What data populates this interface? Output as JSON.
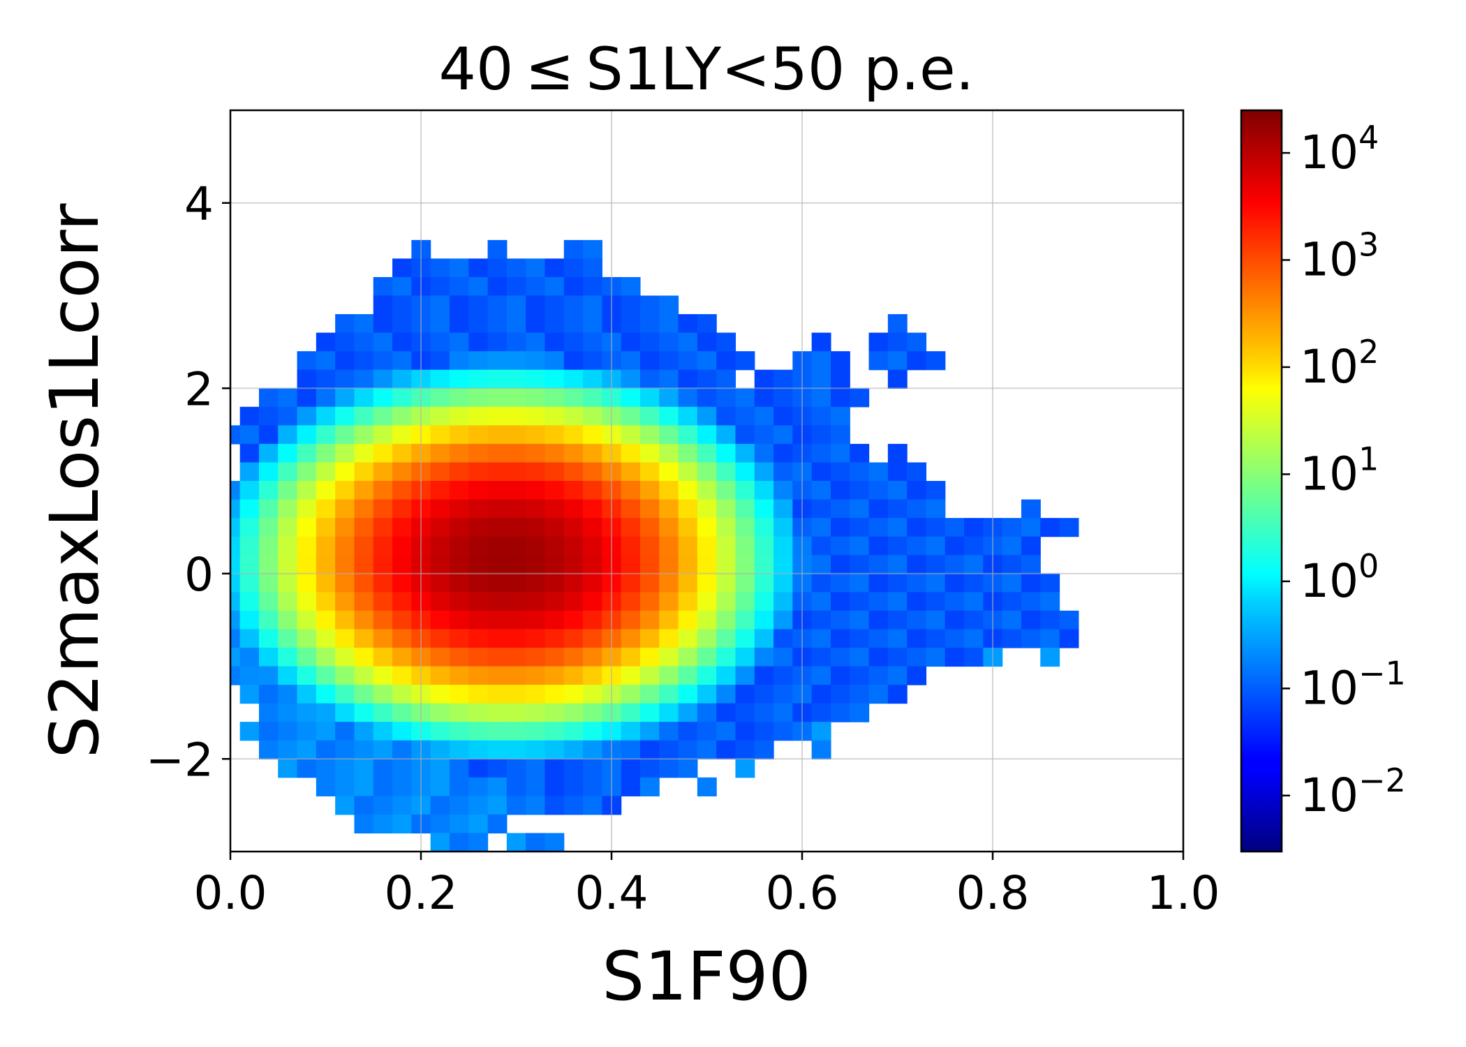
{
  "chart_data": {
    "type": "heatmap",
    "title": "40 ≤ S1LY<50 p.e.",
    "xlabel": "S1F90",
    "ylabel": "S2maxLos1Lcorr",
    "xlim": [
      0.0,
      1.0
    ],
    "ylim": [
      -3.0,
      5.0
    ],
    "x_ticks": [
      0.0,
      0.2,
      0.4,
      0.6,
      0.8,
      1.0
    ],
    "x_tick_labels": [
      "0.0",
      "0.2",
      "0.4",
      "0.6",
      "0.8",
      "1.0"
    ],
    "y_ticks": [
      -2,
      0,
      2,
      4
    ],
    "y_tick_labels": [
      "−2",
      "0",
      "2",
      "4"
    ],
    "grid": true,
    "colormap": "jet",
    "color_scale": "log",
    "color_range": [
      0.003,
      25000
    ],
    "colorbar_ticks": [
      -2,
      -1,
      0,
      1,
      2,
      3,
      4
    ],
    "colorbar_tick_labels": [
      {
        "base": "10",
        "exp": "−2"
      },
      {
        "base": "10",
        "exp": "−1"
      },
      {
        "base": "10",
        "exp": "0"
      },
      {
        "base": "10",
        "exp": "1"
      },
      {
        "base": "10",
        "exp": "2"
      },
      {
        "base": "10",
        "exp": "3"
      },
      {
        "base": "10",
        "exp": "4"
      }
    ],
    "bins": {
      "x_width": 0.02,
      "y_height": 0.2
    },
    "peak": {
      "x": 0.29,
      "y": 0.15,
      "log10_value": 4.2
    },
    "core_ellipse": {
      "x_sigma": 0.128,
      "y_sigma": 0.9
    },
    "rows": [
      {
        "y": 3.5,
        "segments": [
          [
            0.19,
            0.21
          ],
          [
            0.27,
            0.29
          ],
          [
            0.35,
            0.39
          ]
        ]
      },
      {
        "y": 3.3,
        "segments": [
          [
            0.17,
            0.39
          ]
        ]
      },
      {
        "y": 3.1,
        "segments": [
          [
            0.15,
            0.43
          ]
        ]
      },
      {
        "y": 2.9,
        "segments": [
          [
            0.15,
            0.47
          ]
        ]
      },
      {
        "y": 2.7,
        "segments": [
          [
            0.11,
            0.51
          ],
          [
            0.69,
            0.71
          ]
        ]
      },
      {
        "y": 2.5,
        "segments": [
          [
            0.09,
            0.53
          ],
          [
            0.61,
            0.63
          ],
          [
            0.67,
            0.73
          ]
        ]
      },
      {
        "y": 2.3,
        "segments": [
          [
            0.07,
            0.55
          ],
          [
            0.59,
            0.65
          ],
          [
            0.67,
            0.75
          ]
        ]
      },
      {
        "y": 2.1,
        "segments": [
          [
            0.07,
            0.53
          ],
          [
            0.55,
            0.65
          ],
          [
            0.69,
            0.71
          ]
        ]
      },
      {
        "y": 1.9,
        "segments": [
          [
            0.03,
            0.67
          ]
        ]
      },
      {
        "y": 1.7,
        "segments": [
          [
            0.01,
            0.65
          ]
        ]
      },
      {
        "y": 1.5,
        "segments": [
          [
            -0.01,
            0.65
          ]
        ]
      },
      {
        "y": 1.3,
        "segments": [
          [
            0.01,
            0.67
          ],
          [
            0.69,
            0.71
          ]
        ]
      },
      {
        "y": 1.1,
        "segments": [
          [
            0.01,
            0.73
          ]
        ]
      },
      {
        "y": 0.9,
        "segments": [
          [
            -0.01,
            0.75
          ]
        ]
      },
      {
        "y": 0.7,
        "segments": [
          [
            -0.01,
            0.75
          ],
          [
            0.83,
            0.85
          ]
        ]
      },
      {
        "y": 0.5,
        "segments": [
          [
            -0.01,
            0.77
          ],
          [
            0.77,
            0.89
          ]
        ]
      },
      {
        "y": 0.3,
        "segments": [
          [
            -0.01,
            0.85
          ]
        ]
      },
      {
        "y": 0.1,
        "segments": [
          [
            -0.01,
            0.85
          ]
        ]
      },
      {
        "y": -0.1,
        "segments": [
          [
            -0.01,
            0.87
          ]
        ]
      },
      {
        "y": -0.3,
        "segments": [
          [
            -0.01,
            0.87
          ]
        ]
      },
      {
        "y": -0.5,
        "segments": [
          [
            -0.01,
            0.89
          ]
        ]
      },
      {
        "y": -0.7,
        "segments": [
          [
            -0.01,
            0.89
          ]
        ]
      },
      {
        "y": -0.9,
        "segments": [
          [
            -0.01,
            0.79
          ],
          [
            0.79,
            0.81
          ],
          [
            0.85,
            0.87
          ]
        ]
      },
      {
        "y": -1.1,
        "segments": [
          [
            -0.01,
            0.73
          ]
        ]
      },
      {
        "y": -1.3,
        "segments": [
          [
            0.01,
            0.71
          ]
        ]
      },
      {
        "y": -1.5,
        "segments": [
          [
            0.03,
            0.67
          ]
        ]
      },
      {
        "y": -1.7,
        "segments": [
          [
            0.01,
            0.63
          ],
          [
            0.61,
            0.63
          ]
        ]
      },
      {
        "y": -1.9,
        "segments": [
          [
            0.03,
            0.57
          ],
          [
            0.61,
            0.63
          ]
        ]
      },
      {
        "y": -2.1,
        "segments": [
          [
            0.05,
            0.49
          ],
          [
            0.53,
            0.55
          ]
        ]
      },
      {
        "y": -2.3,
        "segments": [
          [
            0.09,
            0.43
          ],
          [
            0.43,
            0.45
          ],
          [
            0.49,
            0.51
          ]
        ]
      },
      {
        "y": -2.5,
        "segments": [
          [
            0.11,
            0.41
          ]
        ]
      },
      {
        "y": -2.7,
        "segments": [
          [
            0.13,
            0.29
          ]
        ]
      },
      {
        "y": -2.9,
        "segments": [
          [
            0.21,
            0.27
          ],
          [
            0.29,
            0.35
          ]
        ]
      }
    ]
  }
}
